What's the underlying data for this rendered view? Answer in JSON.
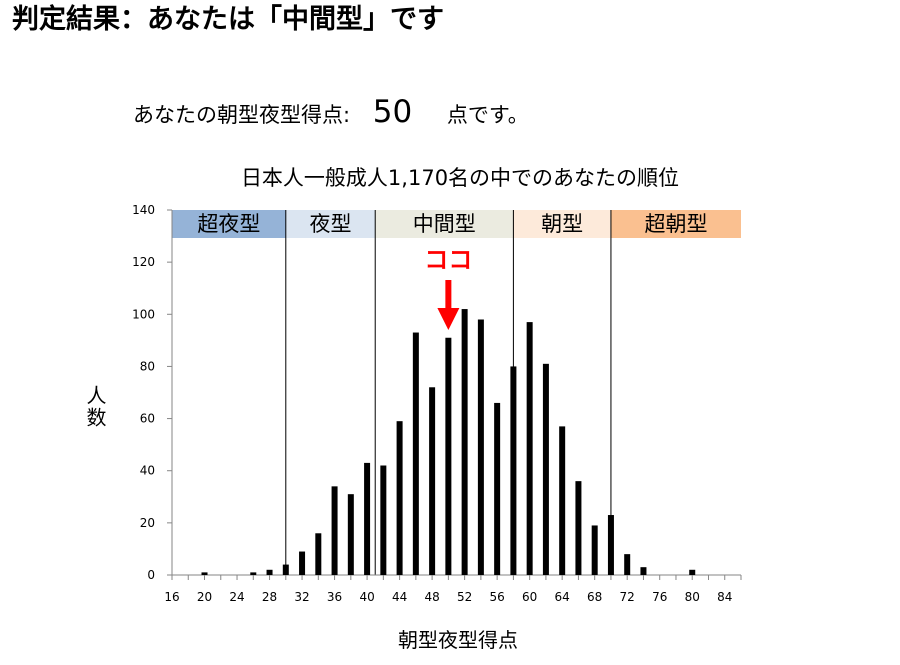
{
  "page": {
    "result_title": "判定結果：あなたは「中間型」です",
    "score_prefix": "あなたの朝型夜型得点:",
    "score_value": "50",
    "score_suffix": "点です。"
  },
  "colors": {
    "super_night": "#95b3d7",
    "night": "#dbe5f1",
    "middle": "#ebebe0",
    "morning": "#fdeada",
    "super_morning": "#fac090",
    "bar": "#000000",
    "marker": "#ff0000"
  },
  "marker": {
    "label": "ココ",
    "x": 50
  },
  "chart_data": {
    "type": "bar",
    "title": "日本人一般成人1,170名の中でのあなたの順位",
    "xlabel": "朝型夜型得点",
    "ylabel": "人数",
    "ylim": [
      0,
      140
    ],
    "y_ticks": [
      0,
      20,
      40,
      60,
      80,
      100,
      120,
      140
    ],
    "x_ticks": [
      16,
      20,
      24,
      28,
      32,
      36,
      40,
      44,
      48,
      52,
      56,
      60,
      64,
      68,
      72,
      76,
      80,
      84
    ],
    "xlim": [
      16,
      86
    ],
    "grid": false,
    "categories": [
      16,
      17,
      18,
      19,
      20,
      21,
      22,
      23,
      24,
      25,
      26,
      27,
      28,
      29,
      30,
      31,
      32,
      33,
      34,
      35,
      36,
      37,
      38,
      39,
      40,
      41,
      42,
      43,
      44,
      45,
      46,
      47,
      48,
      49,
      50,
      51,
      52,
      53,
      54,
      55,
      56,
      57,
      58,
      59,
      60,
      61,
      62,
      63,
      64,
      65,
      66,
      67,
      68,
      69,
      70,
      71,
      72,
      73,
      74,
      75,
      76,
      77,
      78,
      79,
      80,
      81,
      82,
      83,
      84,
      85,
      86
    ],
    "values": [
      0,
      0,
      0,
      0,
      1,
      0,
      0,
      0,
      0,
      0,
      1,
      0,
      2,
      0,
      4,
      0,
      9,
      0,
      16,
      0,
      34,
      0,
      31,
      0,
      43,
      0,
      42,
      0,
      59,
      0,
      93,
      0,
      72,
      0,
      91,
      0,
      102,
      0,
      98,
      0,
      66,
      0,
      80,
      0,
      97,
      0,
      81,
      0,
      57,
      0,
      36,
      0,
      19,
      0,
      23,
      0,
      8,
      0,
      3,
      0,
      0,
      0,
      0,
      0,
      2,
      0,
      0,
      0,
      0,
      0,
      0
    ],
    "bands": [
      {
        "label": "超夜型",
        "from": 16,
        "to": 30
      },
      {
        "label": "夜型",
        "from": 30,
        "to": 41
      },
      {
        "label": "中間型",
        "from": 41,
        "to": 58
      },
      {
        "label": "朝型",
        "from": 58,
        "to": 70
      },
      {
        "label": "超朝型",
        "from": 70,
        "to": 86
      }
    ]
  }
}
